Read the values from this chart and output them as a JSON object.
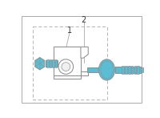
{
  "bg_color": "#ffffff",
  "blue": "#5bbdd4",
  "outline": "#909090",
  "label_color": "#333333",
  "figsize": [
    2.0,
    1.47
  ],
  "dpi": 100,
  "label1": "1",
  "label2": "2"
}
